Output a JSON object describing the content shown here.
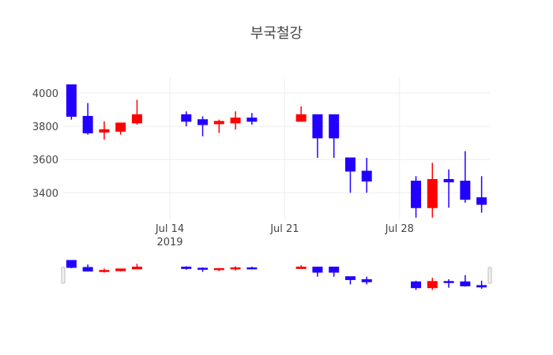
{
  "chart_data": {
    "type": "candlestick",
    "title": "부국철강",
    "x_ticks": [
      "Jul 14",
      "Jul 21",
      "Jul 28"
    ],
    "x_tick_sub": "2019",
    "y_ticks": [
      3400,
      3600,
      3800,
      4000
    ],
    "ylim": [
      3240,
      4095
    ],
    "rangeslider": true,
    "colors": {
      "increasing": "#ff0000",
      "decreasing": "#2200ff"
    },
    "candles": [
      {
        "date": "2019-07-08",
        "open": 4050,
        "high": 4050,
        "low": 3840,
        "close": 3860
      },
      {
        "date": "2019-07-09",
        "open": 3860,
        "high": 3940,
        "low": 3750,
        "close": 3760
      },
      {
        "date": "2019-07-10",
        "open": 3765,
        "high": 3830,
        "low": 3720,
        "close": 3780
      },
      {
        "date": "2019-07-11",
        "open": 3770,
        "high": 3820,
        "low": 3750,
        "close": 3820
      },
      {
        "date": "2019-07-12",
        "open": 3820,
        "high": 3960,
        "low": 3810,
        "close": 3870
      },
      {
        "date": "2019-07-15",
        "open": 3870,
        "high": 3890,
        "low": 3800,
        "close": 3830
      },
      {
        "date": "2019-07-16",
        "open": 3840,
        "high": 3860,
        "low": 3740,
        "close": 3810
      },
      {
        "date": "2019-07-17",
        "open": 3815,
        "high": 3840,
        "low": 3760,
        "close": 3830
      },
      {
        "date": "2019-07-18",
        "open": 3820,
        "high": 3890,
        "low": 3780,
        "close": 3850
      },
      {
        "date": "2019-07-19",
        "open": 3850,
        "high": 3880,
        "low": 3810,
        "close": 3830
      },
      {
        "date": "2019-07-22",
        "open": 3830,
        "high": 3920,
        "low": 3830,
        "close": 3870
      },
      {
        "date": "2019-07-23",
        "open": 3870,
        "high": 3870,
        "low": 3610,
        "close": 3730
      },
      {
        "date": "2019-07-24",
        "open": 3870,
        "high": 3870,
        "low": 3610,
        "close": 3730
      },
      {
        "date": "2019-07-25",
        "open": 3610,
        "high": 3610,
        "low": 3400,
        "close": 3530
      },
      {
        "date": "2019-07-26",
        "open": 3530,
        "high": 3610,
        "low": 3400,
        "close": 3470
      },
      {
        "date": "2019-07-29",
        "open": 3470,
        "high": 3500,
        "low": 3250,
        "close": 3310
      },
      {
        "date": "2019-07-30",
        "open": 3310,
        "high": 3580,
        "low": 3250,
        "close": 3480
      },
      {
        "date": "2019-07-31",
        "open": 3480,
        "high": 3540,
        "low": 3310,
        "close": 3465
      },
      {
        "date": "2019-08-01",
        "open": 3470,
        "high": 3650,
        "low": 3340,
        "close": 3360
      },
      {
        "date": "2019-08-02",
        "open": 3370,
        "high": 3500,
        "low": 3280,
        "close": 3330
      }
    ]
  }
}
